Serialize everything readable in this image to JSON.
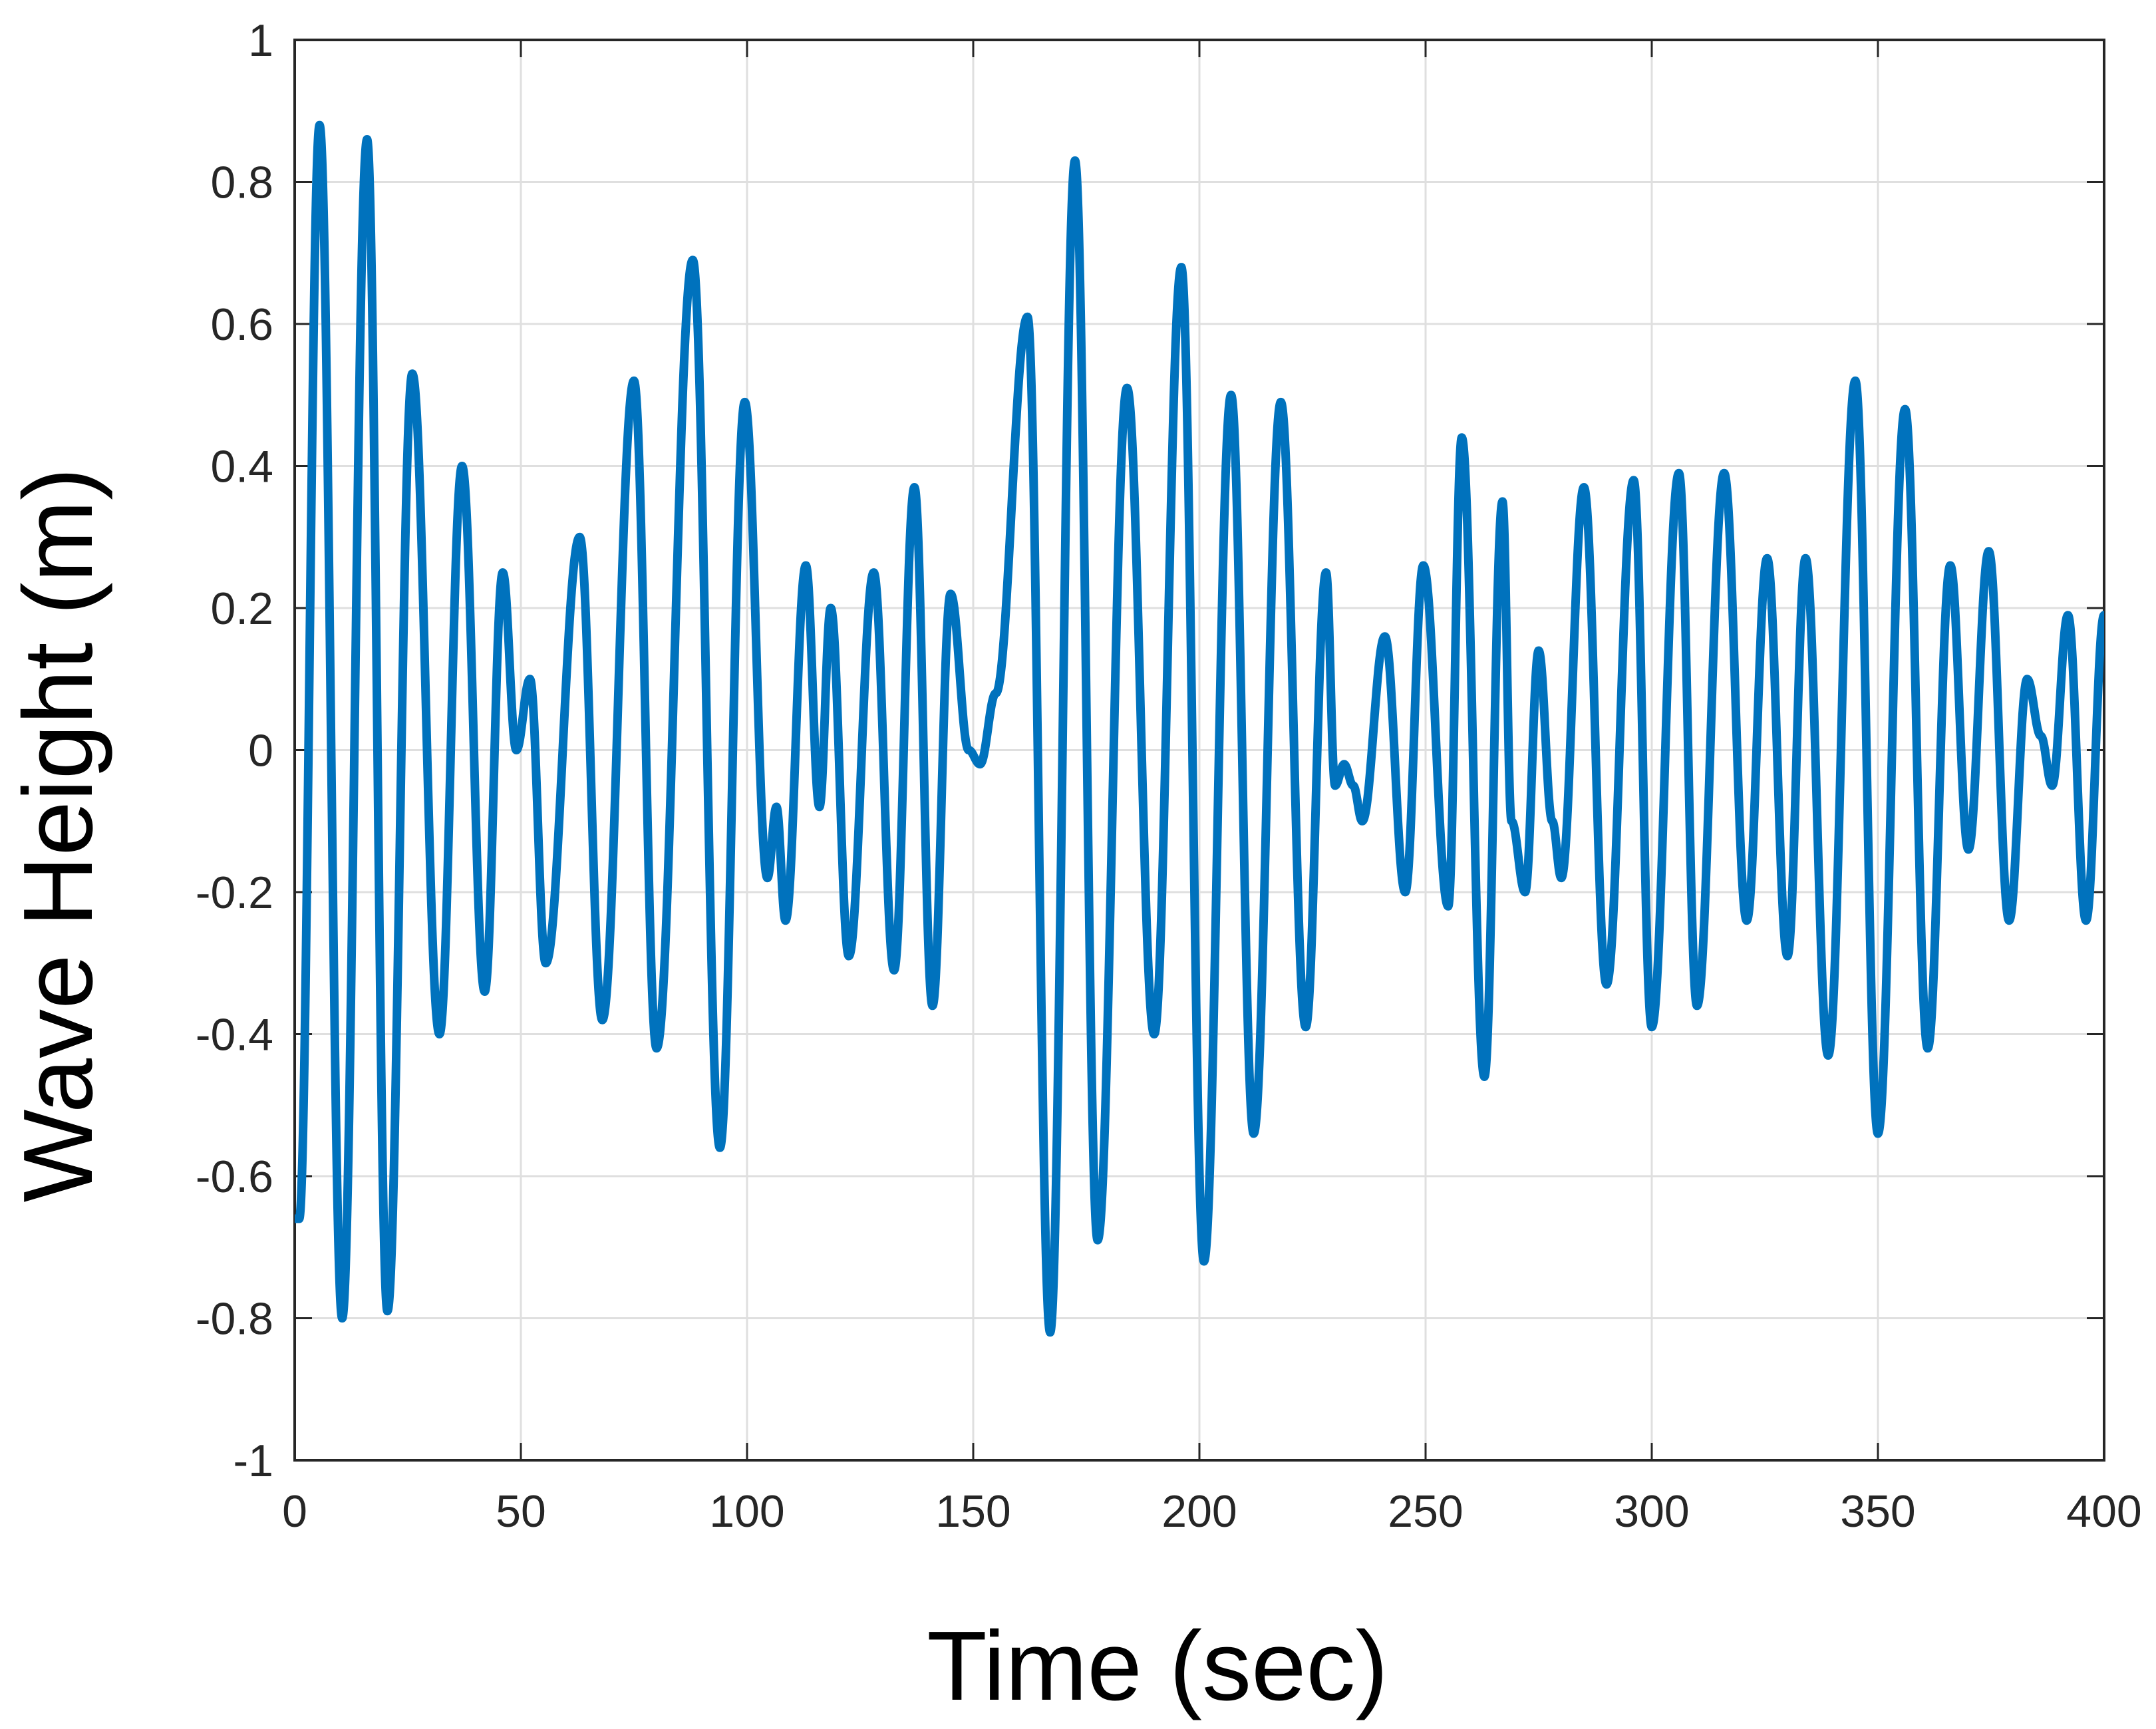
{
  "chart_data": {
    "type": "line",
    "title": "",
    "xlabel": "Time (sec)",
    "ylabel": "Wave Height (m)",
    "xlim": [
      0,
      400
    ],
    "ylim": [
      -1,
      1
    ],
    "x_ticks": [
      "0",
      "50",
      "100",
      "150",
      "200",
      "250",
      "300",
      "350",
      "400"
    ],
    "y_ticks": [
      "1",
      "0.8",
      "0.6",
      "0.4",
      "0.2",
      "0",
      "-0.2",
      "-0.4",
      "-0.6",
      "-0.8",
      "-1"
    ],
    "grid": true,
    "legend": "none",
    "line_color": "#0072BD",
    "series": [
      {
        "name": "",
        "x": [
          0,
          1,
          5.5,
          10.5,
          16,
          20.5,
          26,
          32,
          37,
          42,
          46,
          49,
          52,
          55.5,
          63,
          68,
          75,
          80,
          88,
          94,
          99.5,
          104.5,
          106.5,
          108.5,
          113,
          116,
          118.5,
          122.5,
          128,
          132.5,
          137,
          141,
          145,
          149,
          151.5,
          155,
          162,
          167,
          172.5,
          177.5,
          184,
          190,
          196,
          201,
          207,
          212,
          218,
          223.5,
          228,
          230,
          232,
          234,
          236,
          241,
          245.5,
          249.5,
          255,
          258,
          263,
          267,
          269,
          272,
          275,
          278,
          280,
          285,
          290,
          296,
          300,
          306,
          310,
          316,
          321,
          325.5,
          330,
          334,
          339,
          345,
          350,
          356,
          361,
          366,
          370,
          374.5,
          379,
          383,
          386,
          388.5,
          392,
          396,
          400
        ],
        "values": [
          -0.66,
          -0.66,
          0.88,
          -0.8,
          0.86,
          -0.79,
          0.53,
          -0.4,
          0.4,
          -0.34,
          0.25,
          0.0,
          0.1,
          -0.3,
          0.3,
          -0.38,
          0.52,
          -0.42,
          0.69,
          -0.56,
          0.49,
          -0.18,
          -0.08,
          -0.24,
          0.26,
          -0.08,
          0.2,
          -0.29,
          0.25,
          -0.31,
          0.37,
          -0.36,
          0.22,
          0.0,
          -0.02,
          0.08,
          0.61,
          -0.82,
          0.83,
          -0.69,
          0.51,
          -0.4,
          0.68,
          -0.72,
          0.5,
          -0.54,
          0.49,
          -0.39,
          0.25,
          -0.05,
          -0.02,
          -0.05,
          -0.1,
          0.16,
          -0.2,
          0.26,
          -0.22,
          0.44,
          -0.46,
          0.35,
          -0.1,
          -0.2,
          0.14,
          -0.1,
          -0.18,
          0.37,
          -0.33,
          0.38,
          -0.39,
          0.39,
          -0.36,
          0.39,
          -0.24,
          0.27,
          -0.29,
          0.27,
          -0.43,
          0.52,
          -0.54,
          0.48,
          -0.42,
          0.26,
          -0.14,
          0.28,
          -0.24,
          0.1,
          0.02,
          -0.05,
          0.19,
          -0.24,
          0.19
        ]
      }
    ]
  }
}
